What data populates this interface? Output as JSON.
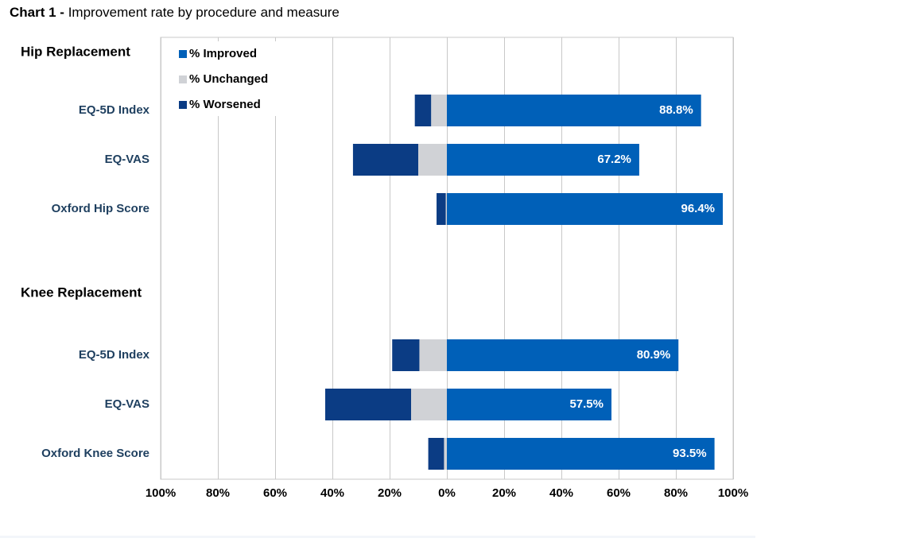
{
  "title": {
    "lead": "Chart 1 -",
    "text": " Improvement rate by procedure and measure"
  },
  "colors": {
    "improved": "#0060b8",
    "unchanged": "#d0d2d6",
    "worsened": "#0b3c84",
    "label_text": "#1e3f5f",
    "grid": "#c8c8c8"
  },
  "chart_data": {
    "type": "bar",
    "orientation": "horizontal",
    "stacking": "diverging",
    "xlim": [
      -100,
      100
    ],
    "x_ticks": [
      "100%",
      "80%",
      "60%",
      "40%",
      "20%",
      "0%",
      "20%",
      "40%",
      "60%",
      "80%",
      "100%"
    ],
    "grid": true,
    "legend_position": "top-left",
    "series": [
      {
        "name": "% Improved",
        "key": "improved"
      },
      {
        "name": "% Unchanged",
        "key": "unchanged"
      },
      {
        "name": "% Worsened",
        "key": "worsened"
      }
    ],
    "groups": [
      {
        "name": "Hip Replacement",
        "rows": [
          {
            "label": "EQ-5D Index",
            "improved": 88.8,
            "unchanged": 5.5,
            "worsened": 5.7,
            "value_label": "88.8%"
          },
          {
            "label": "EQ-VAS",
            "improved": 67.2,
            "unchanged": 10.0,
            "worsened": 22.8,
            "value_label": "67.2%"
          },
          {
            "label": "Oxford Hip Score",
            "improved": 96.4,
            "unchanged": 0.4,
            "worsened": 3.2,
            "value_label": "96.4%"
          }
        ]
      },
      {
        "name": "Knee Replacement",
        "rows": [
          {
            "label": "EQ-5D Index",
            "improved": 80.9,
            "unchanged": 9.6,
            "worsened": 9.5,
            "value_label": "80.9%"
          },
          {
            "label": "EQ-VAS",
            "improved": 57.5,
            "unchanged": 12.5,
            "worsened": 30.0,
            "value_label": "57.5%"
          },
          {
            "label": "Oxford Knee Score",
            "improved": 93.5,
            "unchanged": 1.0,
            "worsened": 5.5,
            "value_label": "93.5%"
          }
        ]
      }
    ]
  }
}
